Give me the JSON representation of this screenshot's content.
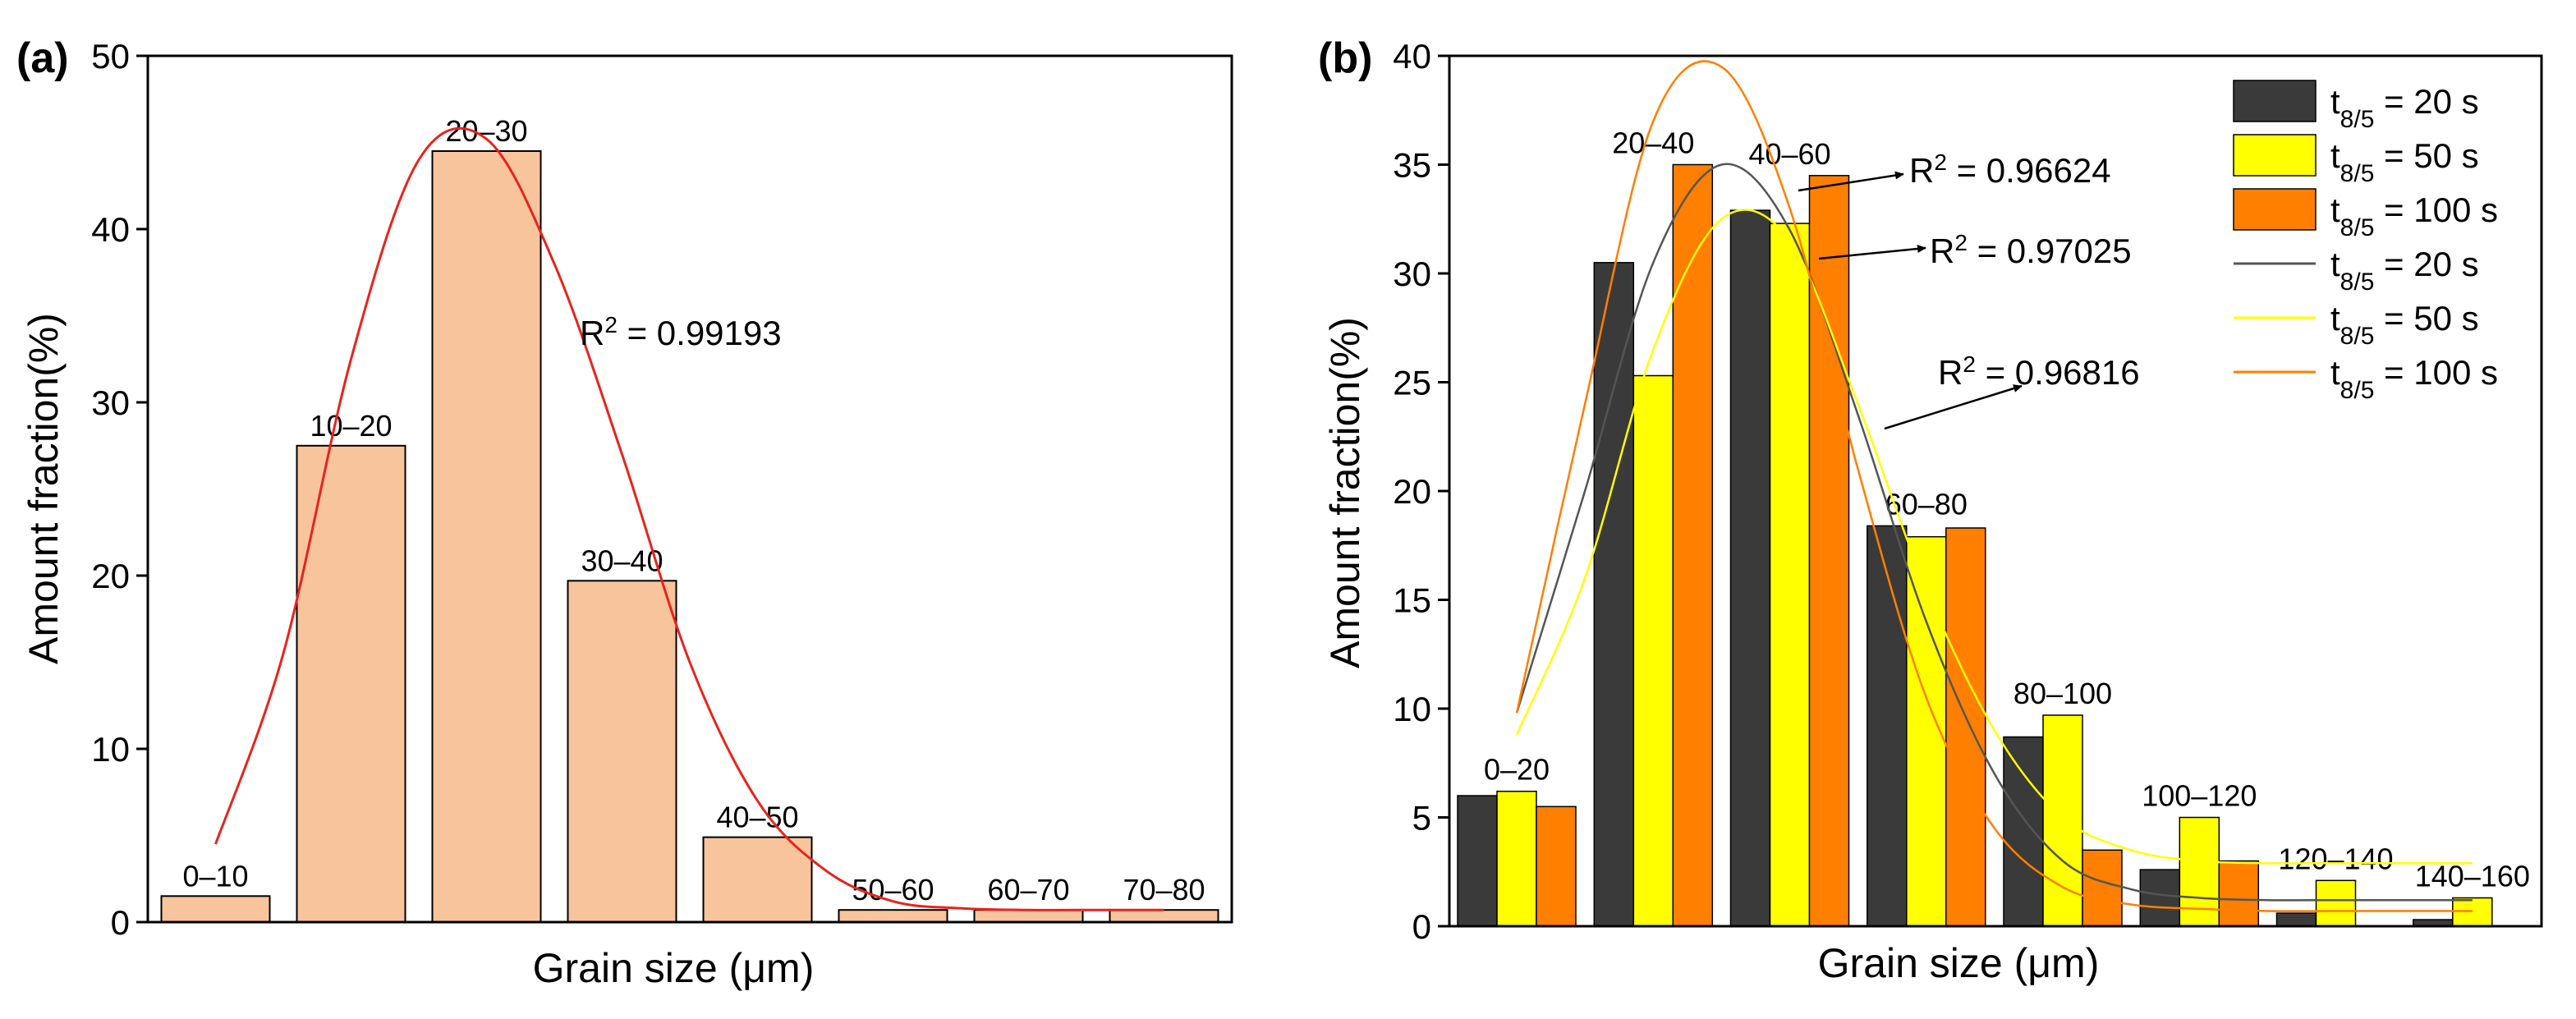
{
  "chart_data": [
    {
      "panel_label": "(a)",
      "type": "bar",
      "categories": [
        "0–10",
        "10–20",
        "20–30",
        "30–40",
        "40–50",
        "50–60",
        "60–70",
        "70–80"
      ],
      "values": [
        1.5,
        27.5,
        44.5,
        19.7,
        4.9,
        0.7,
        0.7,
        0.7
      ],
      "bar_color": "#f8c49c",
      "fit_color": "#e8231e",
      "fit_curve": {
        "x": [
          0.0,
          0.5,
          1.0,
          1.5,
          2.0,
          2.5,
          3.0,
          3.5,
          4.0,
          4.5,
          5.0,
          5.5,
          6.0,
          6.5,
          7.0
        ],
        "y": [
          4.5,
          15.5,
          32.5,
          44.0,
          45.2,
          38.0,
          27.0,
          15.0,
          7.0,
          3.0,
          1.2,
          0.8,
          0.7,
          0.7,
          0.7
        ]
      },
      "r2_text": "R² = 0.99193",
      "xlabel": "Grain size (μm)",
      "ylabel": "Amount fraction(%)",
      "ylim": [
        0,
        50
      ],
      "yticks": [
        "0",
        "10",
        "20",
        "30",
        "40",
        "50"
      ]
    },
    {
      "panel_label": "(b)",
      "type": "bar",
      "categories": [
        "0–20",
        "20–40",
        "40–60",
        "60–80",
        "80–100",
        "100–120",
        "120–140",
        "140–160"
      ],
      "series": [
        {
          "name": "t8/5 = 20 s",
          "color": "#3a3a3a",
          "values": [
            6.0,
            30.5,
            32.9,
            18.4,
            8.7,
            2.6,
            0.6,
            0.3
          ]
        },
        {
          "name": "t8/5 = 50 s",
          "color": "#ffff00",
          "values": [
            6.2,
            25.3,
            32.3,
            17.9,
            9.7,
            5.0,
            2.1,
            1.3
          ]
        },
        {
          "name": "t8/5 = 100 s",
          "color": "#ff7f00",
          "values": [
            5.5,
            35.0,
            34.5,
            18.3,
            3.5,
            3.0,
            null,
            null
          ]
        }
      ],
      "fit_curves": [
        {
          "name": "t8/5 = 20 s",
          "color": "#555555",
          "x": [
            0.0,
            0.5,
            1.0,
            1.5,
            2.0,
            2.5,
            3.0,
            3.5,
            4.0,
            4.5,
            5.0,
            5.5,
            6.0,
            6.5,
            7.0
          ],
          "y": [
            9.8,
            20.0,
            30.5,
            35.0,
            32.0,
            23.5,
            14.0,
            7.0,
            3.0,
            1.7,
            1.3,
            1.2,
            1.2,
            1.2,
            1.2
          ]
        },
        {
          "name": "t8/5 = 50 s",
          "color": "#ffff00",
          "x": [
            0.0,
            0.5,
            1.0,
            1.5,
            2.0,
            2.5,
            3.0,
            3.5,
            4.0,
            4.5,
            5.0,
            5.5,
            6.0,
            6.5,
            7.0
          ],
          "y": [
            8.8,
            16.0,
            26.5,
            32.5,
            31.5,
            24.0,
            15.5,
            9.0,
            5.0,
            3.5,
            3.0,
            2.9,
            2.9,
            2.9,
            2.9
          ]
        },
        {
          "name": "t8/5 = 100 s",
          "color": "#ff7f00",
          "x": [
            0.0,
            0.5,
            1.0,
            1.5,
            2.0,
            2.5,
            3.0,
            3.5,
            4.0,
            4.5,
            5.0,
            5.5,
            6.0,
            6.5,
            7.0
          ],
          "y": [
            9.8,
            24.0,
            37.0,
            39.5,
            33.0,
            21.0,
            10.5,
            4.5,
            1.8,
            1.0,
            0.8,
            0.7,
            0.7,
            0.7,
            0.7
          ]
        }
      ],
      "annotations": [
        {
          "text": "R² = 0.96624"
        },
        {
          "text": "R² = 0.97025"
        },
        {
          "text": "R² = 0.96816"
        }
      ],
      "xlabel": "Grain size (μm)",
      "ylabel": "Amount fraction(%)",
      "ylim": [
        0,
        40
      ],
      "yticks": [
        "0",
        "5",
        "10",
        "15",
        "20",
        "25",
        "30",
        "35",
        "40"
      ],
      "legend_position": "top-right"
    }
  ]
}
